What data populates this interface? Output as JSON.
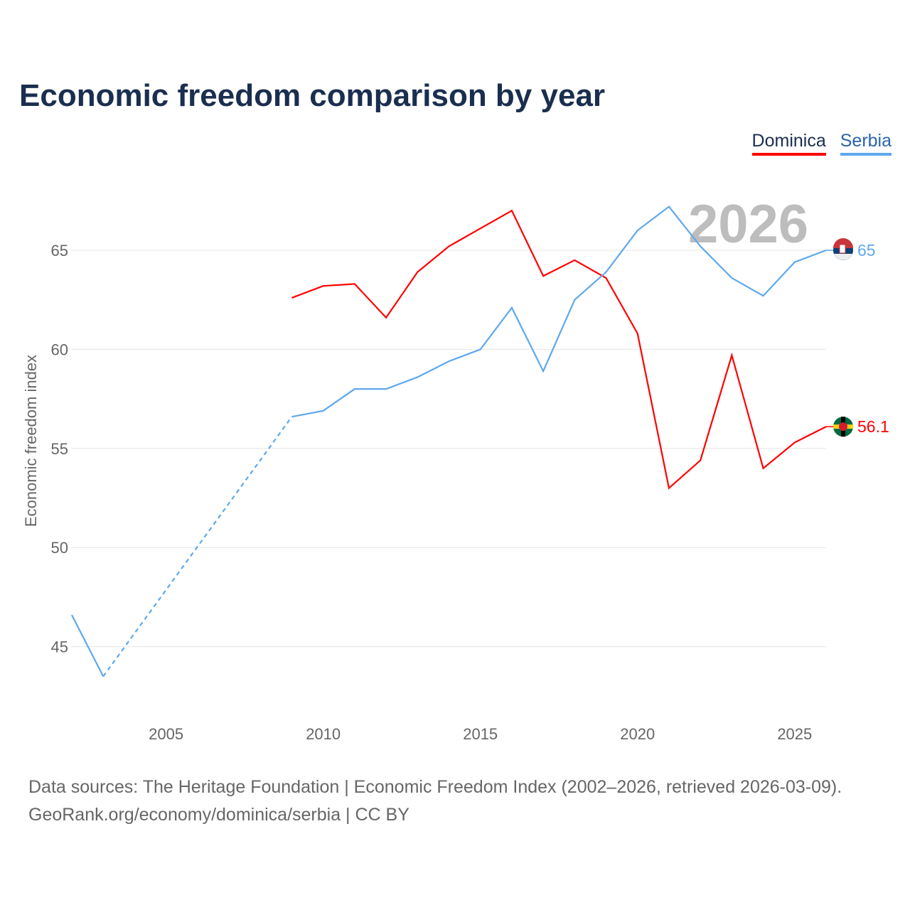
{
  "title": "Economic freedom comparison by year",
  "current_year": "2026",
  "source_line1": "Data sources: The Heritage Foundation | Economic Freedom Index (2002–2026, retrieved 2026-03-09).",
  "source_line2": "GeoRank.org/economy/dominica/serbia | CC BY",
  "chart_data": {
    "type": "line",
    "title": "Economic freedom comparison by year",
    "xlabel": "",
    "ylabel": "Economic freedom index",
    "xlim": [
      2002,
      2026
    ],
    "ylim": [
      43,
      68
    ],
    "x_ticks": [
      2005,
      2010,
      2015,
      2020,
      2025
    ],
    "y_ticks": [
      45,
      50,
      55,
      60,
      65
    ],
    "grid": true,
    "legend": "top-right",
    "series": [
      {
        "name": "Dominica",
        "color": "#ff0000",
        "end_label": "56.1",
        "points": [
          [
            2009,
            62.6
          ],
          [
            2010,
            63.2
          ],
          [
            2011,
            63.3
          ],
          [
            2012,
            61.6
          ],
          [
            2013,
            63.9
          ],
          [
            2014,
            65.2
          ],
          [
            2015,
            66.1
          ],
          [
            2016,
            67.0
          ],
          [
            2017,
            63.7
          ],
          [
            2018,
            64.5
          ],
          [
            2019,
            63.6
          ],
          [
            2020,
            60.8
          ],
          [
            2021,
            53.0
          ],
          [
            2022,
            54.4
          ],
          [
            2023,
            59.7
          ],
          [
            2024,
            54.0
          ],
          [
            2025,
            55.3
          ],
          [
            2026,
            56.1
          ]
        ]
      },
      {
        "name": "Serbia",
        "color": "#5ea8ee",
        "end_label": "65",
        "dashed_gap": [
          2003,
          2009
        ],
        "points": [
          [
            2002,
            46.6
          ],
          [
            2003,
            43.5
          ],
          [
            2009,
            56.6
          ],
          [
            2010,
            56.9
          ],
          [
            2011,
            58.0
          ],
          [
            2012,
            58.0
          ],
          [
            2013,
            58.6
          ],
          [
            2014,
            59.4
          ],
          [
            2015,
            60.0
          ],
          [
            2016,
            62.1
          ],
          [
            2017,
            58.9
          ],
          [
            2018,
            62.5
          ],
          [
            2019,
            63.9
          ],
          [
            2020,
            66.0
          ],
          [
            2021,
            67.2
          ],
          [
            2022,
            65.2
          ],
          [
            2023,
            63.6
          ],
          [
            2024,
            62.7
          ],
          [
            2025,
            64.4
          ],
          [
            2026,
            65.0
          ]
        ]
      }
    ]
  }
}
